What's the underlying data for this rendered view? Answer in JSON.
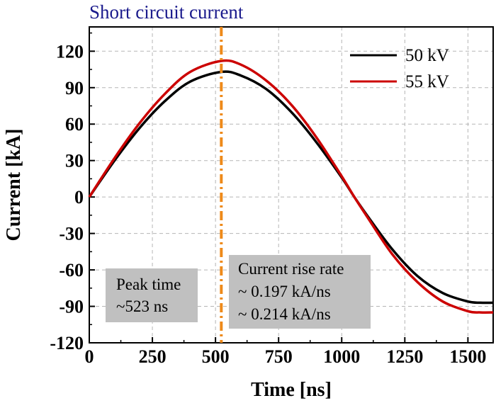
{
  "chart_data": {
    "type": "line",
    "title": "Short circuit current",
    "xlabel": "Time [ns]",
    "ylabel": "Current [kA]",
    "xlim": [
      0,
      1600
    ],
    "ylim": [
      -120,
      140
    ],
    "xticks": [
      0,
      250,
      500,
      750,
      1000,
      1250,
      1500
    ],
    "yticks": [
      -120,
      -90,
      -60,
      -30,
      0,
      30,
      60,
      90,
      120
    ],
    "xtick_labels": [
      "0",
      "250",
      "500",
      "750",
      "1000",
      "1250",
      "1500"
    ],
    "ytick_labels": [
      "-120",
      "-90",
      "-60",
      "-30",
      "0",
      "30",
      "60",
      "90",
      "120"
    ],
    "grid": true,
    "legend_position": "top-right",
    "series": [
      {
        "name": "50 kV",
        "color": "#000000",
        "x": [
          0,
          100,
          200,
          300,
          400,
          523,
          600,
          700,
          800,
          900,
          1000,
          1050,
          1100,
          1200,
          1300,
          1400,
          1500,
          1550,
          1600
        ],
        "y": [
          0,
          30,
          57,
          79,
          95,
          103,
          100,
          89,
          70,
          45,
          16,
          0,
          -15,
          -43,
          -65,
          -79,
          -86,
          -87,
          -87
        ]
      },
      {
        "name": "55 kV",
        "color": "#cc0000",
        "x": [
          0,
          100,
          200,
          300,
          400,
          523,
          600,
          700,
          800,
          900,
          1000,
          1050,
          1100,
          1200,
          1300,
          1400,
          1500,
          1550,
          1600
        ],
        "y": [
          0,
          32,
          61,
          85,
          103,
          112,
          109,
          96,
          76,
          49,
          17,
          0,
          -16,
          -47,
          -70,
          -86,
          -94,
          -95,
          -95
        ]
      }
    ],
    "peak_line": {
      "x": 523,
      "color": "#ee8a1a"
    },
    "annotations": {
      "peak_box": {
        "line1": "Peak time",
        "line2": "~523 ns"
      },
      "rate_box": {
        "line1": "Current rise rate",
        "line2": "~ 0.197 kA/ns",
        "line3": "~ 0.214 kA/ns",
        "line3_color": "#cc0000"
      }
    }
  }
}
